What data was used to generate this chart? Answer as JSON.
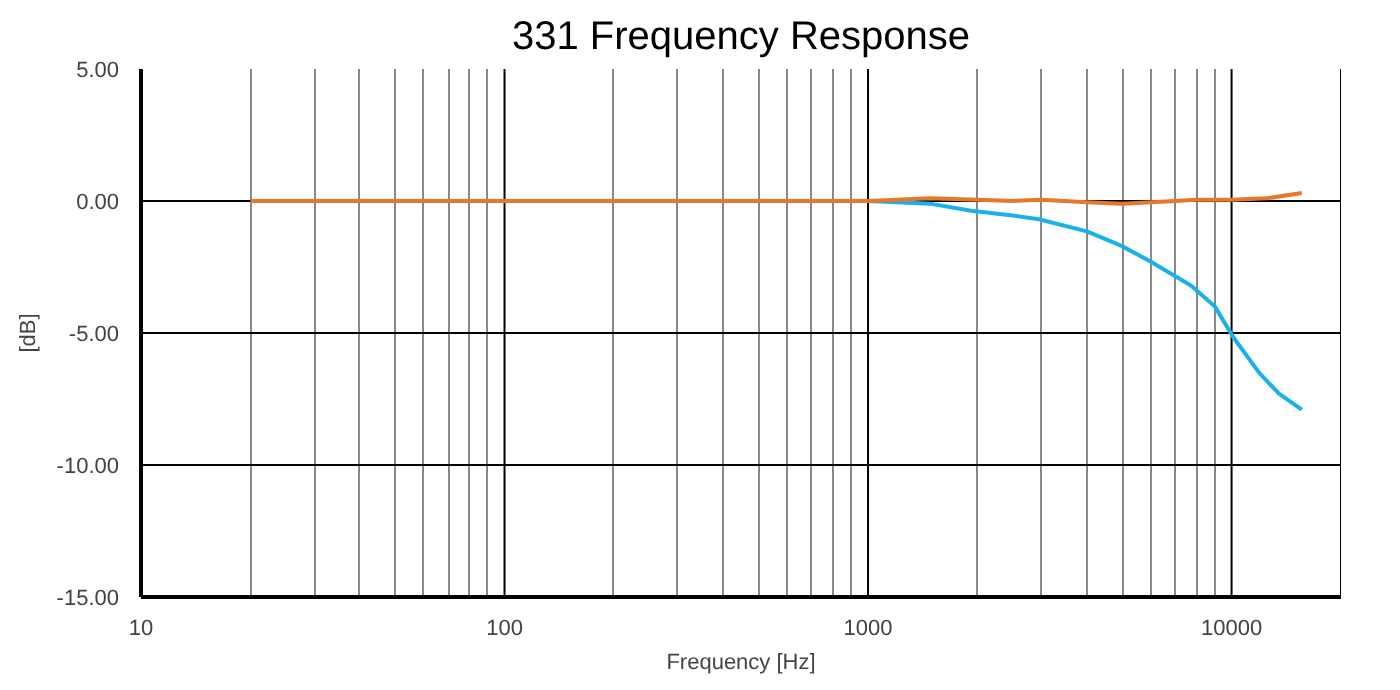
{
  "chart_data": {
    "type": "line",
    "title": "331 Frequency Response",
    "xlabel": "Frequency [Hz]",
    "ylabel": "[dB]",
    "log": "x",
    "xlim": [
      10,
      20000
    ],
    "ylim": [
      -15,
      5
    ],
    "xticks": [
      10,
      {
        "value": 20,
        "label": null
      },
      {
        "value": 30,
        "label": null
      },
      {
        "value": 40,
        "label": null
      },
      {
        "value": 50,
        "label": null
      },
      {
        "value": 60,
        "label": null
      },
      {
        "value": 70,
        "label": null
      },
      {
        "value": 80,
        "label": null
      },
      {
        "value": 90,
        "label": null
      },
      100,
      {
        "value": 200,
        "label": null
      },
      {
        "value": 300,
        "label": null
      },
      {
        "value": 400,
        "label": null
      },
      {
        "value": 500,
        "label": null
      },
      {
        "value": 600,
        "label": null
      },
      {
        "value": 700,
        "label": null
      },
      {
        "value": 800,
        "label": null
      },
      {
        "value": 900,
        "label": null
      },
      1000,
      {
        "value": 2000,
        "label": null
      },
      {
        "value": 3000,
        "label": null
      },
      {
        "value": 4000,
        "label": null
      },
      {
        "value": 5000,
        "label": null
      },
      {
        "value": 6000,
        "label": null
      },
      {
        "value": 7000,
        "label": null
      },
      {
        "value": 8000,
        "label": null
      },
      {
        "value": 9000,
        "label": null
      },
      10000,
      {
        "value": 20000,
        "label": null
      }
    ],
    "yticks": [
      {
        "value": 5,
        "label": "5.00"
      },
      {
        "value": 0,
        "label": "0.00"
      },
      {
        "value": -5,
        "label": "-5.00"
      },
      {
        "value": -10,
        "label": "-10.00"
      },
      {
        "value": -15,
        "label": "-15.00"
      }
    ],
    "grid": true,
    "series": [
      {
        "color": "#1ab0ec",
        "x": [
          1000,
          1480,
          1920,
          2500,
          2950,
          4000,
          4980,
          6000,
          7730,
          9000,
          10100,
          11900,
          13500,
          15600
        ],
        "values": [
          0,
          -0.1,
          -0.37,
          -0.55,
          -0.69,
          -1.15,
          -1.7,
          -2.3,
          -3.2,
          -4.0,
          -5.15,
          -6.5,
          -7.3,
          -7.9
        ]
      },
      {
        "color": "#e8772a",
        "x": [
          20,
          100,
          500,
          1000,
          1480,
          2000,
          2500,
          3000,
          4000,
          5000,
          6000,
          7000,
          8000,
          10000,
          12500,
          15600
        ],
        "values": [
          0,
          0,
          0,
          0,
          0.1,
          0.05,
          0,
          0.05,
          -0.05,
          -0.1,
          -0.05,
          0,
          0.05,
          0.05,
          0.1,
          0.3
        ]
      }
    ]
  }
}
